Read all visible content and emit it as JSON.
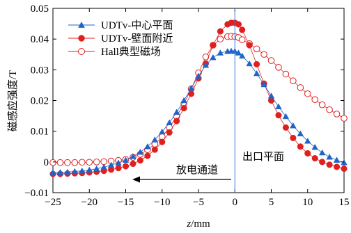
{
  "chart_data": {
    "type": "line",
    "xlabel": "z/mm",
    "ylabel": "磁感应强度/T",
    "xlim": [
      -25,
      15
    ],
    "ylim": [
      -0.01,
      0.05
    ],
    "xticks": [
      "−25",
      "−20",
      "−15",
      "−10",
      "−5",
      "0",
      "5",
      "10",
      "15"
    ],
    "xtick_values": [
      -25,
      -20,
      -15,
      -10,
      -5,
      0,
      5,
      10,
      15
    ],
    "yticks": [
      "−0.01",
      "0",
      "0.01",
      "0.02",
      "0.03",
      "0.04",
      "0.05"
    ],
    "ytick_values": [
      -0.01,
      0,
      0.01,
      0.02,
      0.03,
      0.04,
      0.05
    ],
    "grid": false,
    "legend_position": "top-left",
    "vline": {
      "x": 0,
      "color": "#3a7fd5"
    },
    "annotations": {
      "exit_plane": "出口平面",
      "discharge_channel": "放电通道"
    },
    "series": [
      {
        "name": "UDTv-中心平面",
        "marker": "triangle",
        "color": "#1f64c8",
        "x": [
          -25,
          -24,
          -23,
          -22,
          -21,
          -20,
          -19,
          -18,
          -17,
          -16,
          -15,
          -14,
          -13,
          -12,
          -11,
          -10,
          -9,
          -8,
          -7,
          -6,
          -5,
          -4,
          -3,
          -2,
          -1,
          -0.5,
          0,
          0.5,
          1,
          2,
          3,
          4,
          5,
          6,
          7,
          8,
          9,
          10,
          11,
          12,
          13,
          14,
          15
        ],
        "y": [
          -0.0035,
          -0.0034,
          -0.0033,
          -0.0031,
          -0.0029,
          -0.0026,
          -0.0022,
          -0.0017,
          -0.001,
          -0.0003,
          0.0006,
          0.0018,
          0.0032,
          0.005,
          0.0072,
          0.0098,
          0.0128,
          0.0162,
          0.02,
          0.024,
          0.028,
          0.0315,
          0.034,
          0.0355,
          0.036,
          0.0361,
          0.036,
          0.0355,
          0.0345,
          0.032,
          0.0288,
          0.0252,
          0.0215,
          0.018,
          0.0148,
          0.0118,
          0.0092,
          0.0068,
          0.0048,
          0.003,
          0.0016,
          0.0006,
          -0.0002
        ]
      },
      {
        "name": "UDTv-壁面附近",
        "marker": "circle",
        "color": "#e01f1f",
        "x": [
          -25,
          -24,
          -23,
          -22,
          -21,
          -20,
          -19,
          -18,
          -17,
          -16,
          -15,
          -14,
          -13,
          -12,
          -11,
          -10,
          -9,
          -8,
          -7,
          -6,
          -5,
          -4,
          -3,
          -2,
          -1,
          -0.5,
          0,
          0.5,
          1,
          2,
          3,
          4,
          5,
          6,
          7,
          8,
          9,
          10,
          11,
          12,
          13,
          14,
          15
        ],
        "y": [
          -0.0039,
          -0.0039,
          -0.0038,
          -0.0037,
          -0.0036,
          -0.0034,
          -0.0032,
          -0.0029,
          -0.0025,
          -0.002,
          -0.0014,
          -0.0006,
          0.0005,
          0.002,
          0.004,
          0.0065,
          0.0096,
          0.0133,
          0.0175,
          0.0222,
          0.0272,
          0.032,
          0.038,
          0.0425,
          0.0448,
          0.0453,
          0.0453,
          0.0448,
          0.043,
          0.038,
          0.0318,
          0.0255,
          0.02,
          0.0152,
          0.0112,
          0.0078,
          0.005,
          0.0028,
          0.0012,
          0.0,
          -0.0009,
          -0.0016,
          -0.0022
        ]
      },
      {
        "name": "Hall典型磁场",
        "marker": "open-circle",
        "color": "#e01f1f",
        "x": [
          -25,
          -24,
          -23,
          -22,
          -21,
          -20,
          -19,
          -18,
          -17,
          -16,
          -15,
          -14,
          -13,
          -12,
          -11,
          -10,
          -9,
          -8,
          -7,
          -6,
          -5,
          -4,
          -3,
          -2,
          -1,
          -0.5,
          0,
          0.5,
          1,
          2,
          3,
          4,
          5,
          6,
          7,
          8,
          9,
          10,
          11,
          12,
          13,
          14,
          15
        ],
        "y": [
          -0.0002,
          -0.0002,
          -0.0002,
          -0.0002,
          -0.0001,
          -0.0001,
          0.0,
          0.0001,
          0.0003,
          0.0005,
          0.0008,
          0.0015,
          0.0025,
          0.004,
          0.0058,
          0.0082,
          0.0112,
          0.0148,
          0.019,
          0.0238,
          0.029,
          0.0342,
          0.038,
          0.04,
          0.0408,
          0.0409,
          0.0408,
          0.0405,
          0.0398,
          0.0385,
          0.0368,
          0.035,
          0.033,
          0.0308,
          0.0286,
          0.0264,
          0.0242,
          0.0222,
          0.0203,
          0.0186,
          0.017,
          0.0156,
          0.0142
        ]
      }
    ]
  }
}
